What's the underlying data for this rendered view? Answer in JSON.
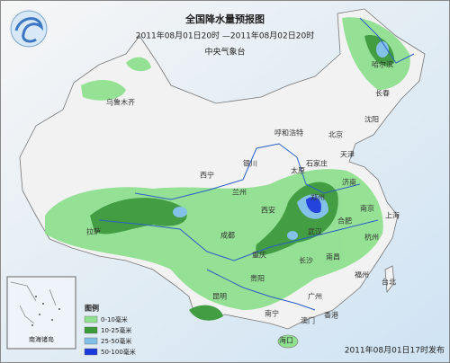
{
  "header": {
    "title": "全国降水量预报图",
    "subtitle": "2011年08月01日20时 —2011年08月02日20时",
    "issuer": "中央气象台"
  },
  "cities": [
    "哈尔滨",
    "长春",
    "沈阳",
    "乌鲁木齐",
    "呼和浩特",
    "北京",
    "天津",
    "石家庄",
    "太原",
    "银川",
    "西宁",
    "兰州",
    "济南",
    "郑州",
    "西安",
    "南京",
    "合肥",
    "上海",
    "成都",
    "武汉",
    "杭州",
    "拉萨",
    "重庆",
    "长沙",
    "南昌",
    "贵阳",
    "福州",
    "台北",
    "昆明",
    "广州",
    "南宁",
    "澳门",
    "香港",
    "海口"
  ],
  "inset_label": "南海诸岛",
  "legend": {
    "title": "图例",
    "items": [
      "0-10毫米",
      "10-25毫米",
      "25-50毫米",
      "50-100毫米"
    ]
  },
  "footer": "2011年08月01日17时发布"
}
